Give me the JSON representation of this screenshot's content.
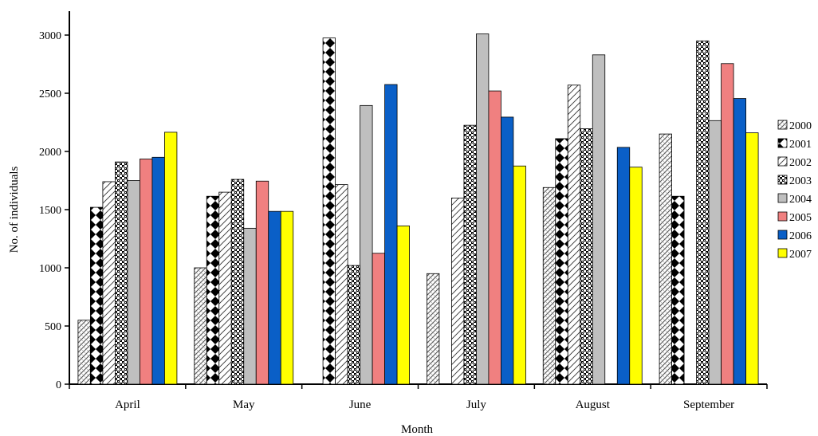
{
  "chart_data": {
    "type": "bar",
    "title": "",
    "xlabel": "Month",
    "ylabel": "No. of individuals",
    "ylim": [
      0,
      3000
    ],
    "yticks": [
      0,
      500,
      1000,
      1500,
      2000,
      2500,
      3000
    ],
    "grid": false,
    "legend_position": "right",
    "categories": [
      "April",
      "May",
      "June",
      "July",
      "August",
      "September"
    ],
    "series": [
      {
        "name": "2000",
        "pattern": "diagonal-hatch",
        "color": "#ffffff",
        "values": [
          550,
          1000,
          0,
          950,
          1690,
          2150
        ]
      },
      {
        "name": "2001",
        "pattern": "black-diamonds",
        "color": "#000000",
        "values": [
          1520,
          1615,
          2975,
          0,
          2110,
          1615
        ]
      },
      {
        "name": "2002",
        "pattern": "diagonal-lines",
        "color": "#ffffff",
        "values": [
          1740,
          1650,
          1715,
          1600,
          2570,
          0
        ]
      },
      {
        "name": "2003",
        "pattern": "dotted",
        "color": "#000000",
        "values": [
          1910,
          1760,
          1020,
          2225,
          2195,
          2950
        ]
      },
      {
        "name": "2004",
        "pattern": "solid",
        "color": "#bfbfbf",
        "values": [
          1750,
          1340,
          2395,
          3010,
          2830,
          2265
        ]
      },
      {
        "name": "2005",
        "pattern": "solid",
        "color": "#f08080",
        "values": [
          1935,
          1745,
          1125,
          2520,
          0,
          2755
        ]
      },
      {
        "name": "2006",
        "pattern": "solid",
        "color": "#0a5fc7",
        "values": [
          1950,
          1485,
          2575,
          2295,
          2035,
          2455
        ]
      },
      {
        "name": "2007",
        "pattern": "solid",
        "color": "#ffff00",
        "values": [
          2165,
          1485,
          1360,
          1875,
          1865,
          2160
        ]
      }
    ]
  }
}
